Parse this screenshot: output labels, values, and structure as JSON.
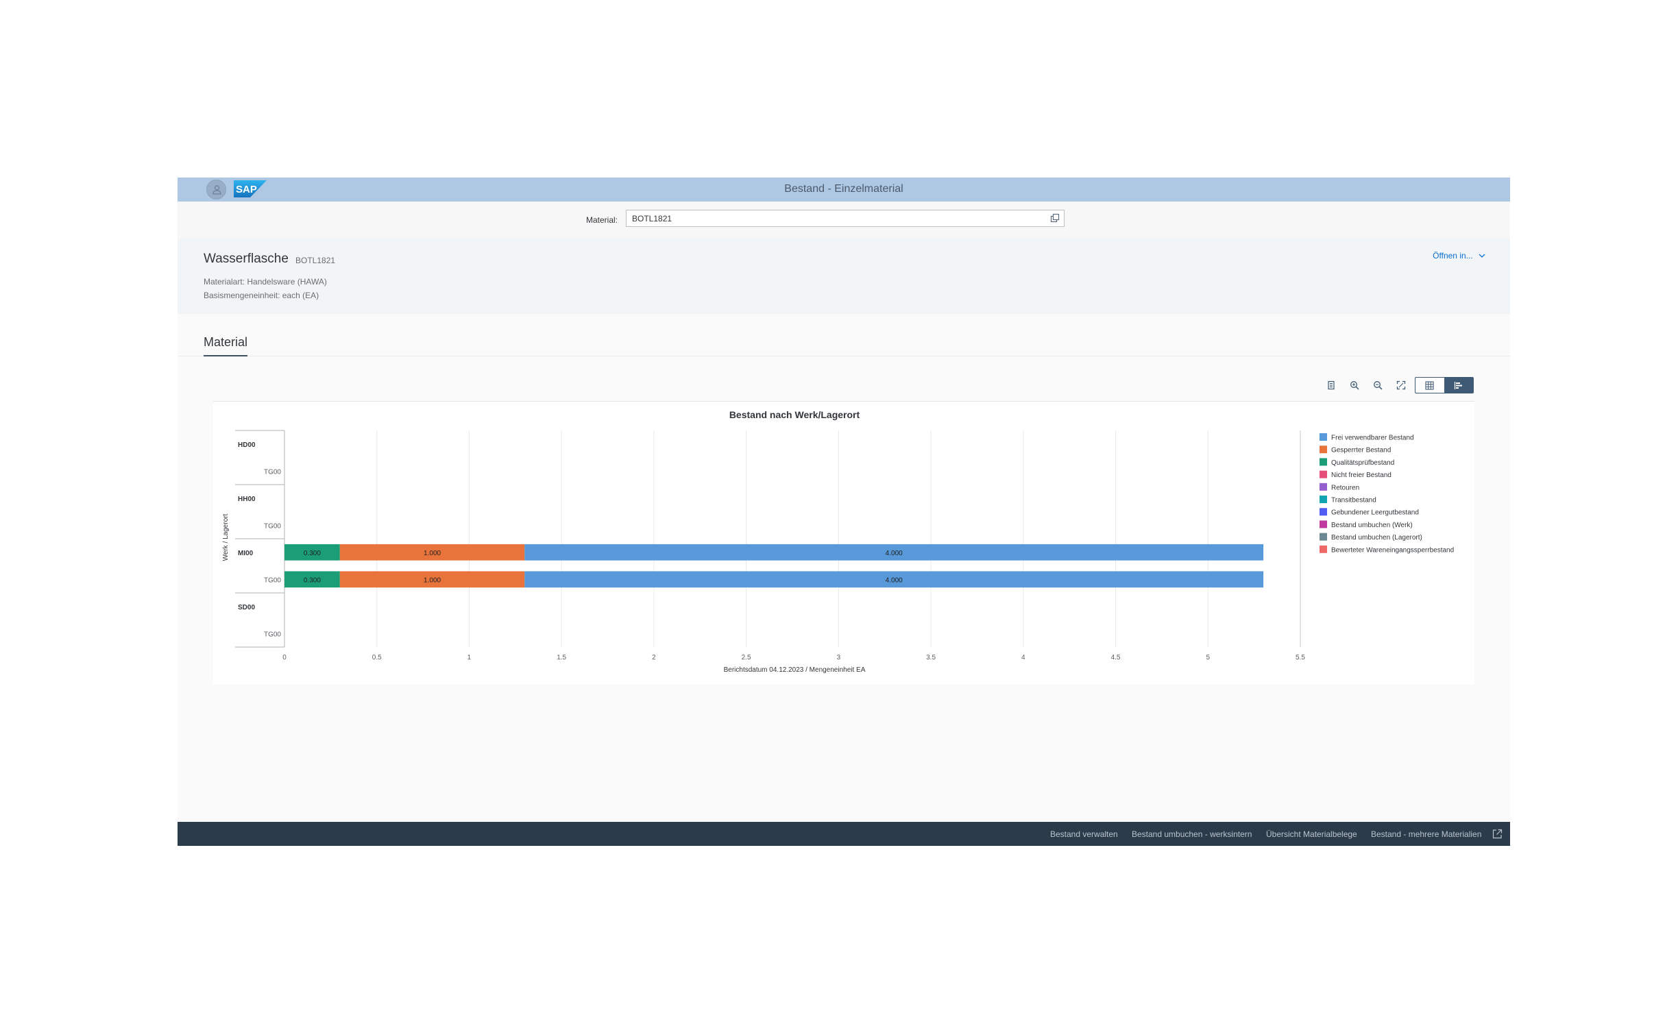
{
  "shell": {
    "title": "Bestand - Einzelmaterial",
    "logo": "SAP"
  },
  "material_bar": {
    "label": "Material:",
    "value": "BOTL1821"
  },
  "header": {
    "title": "Wasserflasche",
    "subtitle": "BOTL1821",
    "material_type": "Materialart: Handelsware (HAWA)",
    "base_uom": "Basismengeneinheit: each (EA)",
    "open_in": "Öffnen in..."
  },
  "tabs": [
    {
      "label": "Material",
      "selected": true
    }
  ],
  "toolbar": {
    "icons": [
      "legend-icon",
      "zoom-in-icon",
      "zoom-out-icon",
      "fullscreen-icon"
    ],
    "view_toggle": [
      "table-view-icon",
      "chart-view-icon"
    ],
    "active_view": "chart"
  },
  "chart_data": {
    "type": "bar",
    "orientation": "horizontal",
    "stacked": true,
    "title": "Bestand nach Werk/Lagerort",
    "xlabel": "Berichtsdatum 04.12.2023 / Mengeneinheit EA",
    "ylabel": "Werk / Lagerort",
    "xlim": [
      0,
      5.5
    ],
    "xticks": [
      "0",
      "0.5",
      "1",
      "1.5",
      "2",
      "2.5",
      "3",
      "3.5",
      "4",
      "4.5",
      "5",
      "5.5"
    ],
    "grid": true,
    "legend_position": "right",
    "groups": [
      {
        "label": "HD00",
        "rows": [
          {
            "label": "TG00"
          }
        ]
      },
      {
        "label": "HH00",
        "rows": [
          {
            "label": "TG00"
          }
        ]
      },
      {
        "label": "MI00",
        "rows": [
          {
            "label": "TG00"
          }
        ]
      },
      {
        "label": "SD00",
        "rows": [
          {
            "label": "TG00"
          }
        ]
      }
    ],
    "categories": [
      "HD00",
      "HD00 / TG00",
      "HH00",
      "HH00 / TG00",
      "MI00",
      "MI00 / TG00",
      "SD00",
      "SD00 / TG00"
    ],
    "series": [
      {
        "name": "Qualitätsprüfbestand",
        "color": "#1b9e77",
        "values": [
          0,
          0,
          0,
          0,
          0.3,
          0.3,
          0,
          0
        ],
        "labels": [
          "",
          "",
          "",
          "",
          "0.300",
          "0.300",
          "",
          ""
        ]
      },
      {
        "name": "Gesperrter Bestand",
        "color": "#e8743b",
        "values": [
          0,
          0,
          0,
          0,
          1.0,
          1.0,
          0,
          0
        ],
        "labels": [
          "",
          "",
          "",
          "",
          "1.000",
          "1.000",
          "",
          ""
        ]
      },
      {
        "name": "Frei verwendbarer Bestand",
        "color": "#5899da",
        "values": [
          0,
          0,
          0,
          0,
          4.0,
          4.0,
          0,
          0
        ],
        "labels": [
          "",
          "",
          "",
          "",
          "4.000",
          "4.000",
          "",
          ""
        ]
      }
    ],
    "legend": [
      {
        "name": "Frei verwendbarer Bestand",
        "color": "#5899da"
      },
      {
        "name": "Gesperrter Bestand",
        "color": "#e8743b"
      },
      {
        "name": "Qualitätsprüfbestand",
        "color": "#1b9e77"
      },
      {
        "name": "Nicht freier Bestand",
        "color": "#e44e79"
      },
      {
        "name": "Retouren",
        "color": "#945ecf"
      },
      {
        "name": "Transitbestand",
        "color": "#13a4b4"
      },
      {
        "name": "Gebundener Leergutbestand",
        "color": "#525df4"
      },
      {
        "name": "Bestand umbuchen (Werk)",
        "color": "#bf399e"
      },
      {
        "name": "Bestand umbuchen (Lagerort)",
        "color": "#6c8893"
      },
      {
        "name": "Bewerteter Wareneingangssperrbestand",
        "color": "#ee6868"
      }
    ]
  },
  "footer": {
    "links": [
      "Bestand verwalten",
      "Bestand umbuchen - werksintern",
      "Übersicht Materialbelege",
      "Bestand - mehrere Materialien"
    ]
  }
}
